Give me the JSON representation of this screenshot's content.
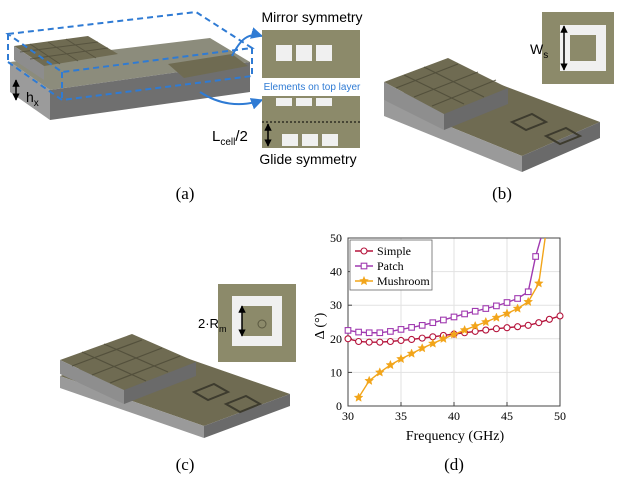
{
  "panel_a": {
    "label_hx": "h",
    "label_hx_sub": "x",
    "label_lcell": "L",
    "label_lcell_sub": "cell",
    "label_lcell_div": "/2",
    "mirror_title": "Mirror symmetry",
    "top_layer_label": "Elements on top layer",
    "glide_title": "Glide symmetry",
    "caption": "(a)"
  },
  "panel_b": {
    "label_ws": "W",
    "label_ws_sub": "s",
    "caption": "(b)"
  },
  "panel_c": {
    "label_rm": "2·R",
    "label_rm_sub": "m",
    "caption": "(c)"
  },
  "panel_d": {
    "caption": "(d)"
  },
  "colors": {
    "simple": "#b5143c",
    "patch": "#a03ab0",
    "mushroom": "#f2a51a",
    "dashed": "#2f7bd4",
    "substrate": "#8a8a7a"
  },
  "chart_data": {
    "type": "line",
    "xlabel": "Frequency (GHz)",
    "ylabel": "Δ (°)",
    "xlim": [
      30,
      50
    ],
    "ylim": [
      0,
      50
    ],
    "xticks": [
      30,
      35,
      40,
      45,
      50
    ],
    "yticks": [
      0,
      10,
      20,
      30,
      40,
      50
    ],
    "grid": true,
    "legend_position": "top-left",
    "series": [
      {
        "name": "Simple",
        "marker": "circle",
        "x": [
          30,
          31,
          32,
          33,
          34,
          35,
          36,
          37,
          38,
          39,
          40,
          41,
          42,
          43,
          44,
          45,
          46,
          47,
          48,
          49,
          50
        ],
        "values": [
          20,
          19.2,
          19,
          19,
          19.2,
          19.5,
          19.8,
          20.2,
          20.6,
          21,
          21.4,
          21.8,
          22.2,
          22.6,
          23,
          23.3,
          23.6,
          24,
          24.8,
          25.8,
          26.8
        ]
      },
      {
        "name": "Patch",
        "marker": "square",
        "x": [
          30,
          31,
          32,
          33,
          34,
          35,
          36,
          37,
          38,
          39,
          40,
          41,
          42,
          43,
          44,
          45,
          46,
          47,
          47.7,
          48.2
        ],
        "values": [
          22.5,
          22,
          21.8,
          21.8,
          22.2,
          22.8,
          23.4,
          24,
          24.8,
          25.6,
          26.5,
          27.4,
          28.2,
          29,
          29.8,
          30.8,
          32,
          34,
          44.5,
          50
        ]
      },
      {
        "name": "Mushroom",
        "marker": "star",
        "x": [
          31,
          32,
          33,
          34,
          35,
          36,
          37,
          38,
          39,
          40,
          41,
          42,
          43,
          44,
          45,
          46,
          47,
          48,
          48.6
        ],
        "values": [
          2.5,
          7.5,
          10,
          12.2,
          14,
          15.6,
          17.2,
          18.6,
          20,
          21.3,
          22.6,
          23.8,
          25,
          26.3,
          27.5,
          29,
          31,
          36.5,
          50
        ]
      }
    ]
  }
}
